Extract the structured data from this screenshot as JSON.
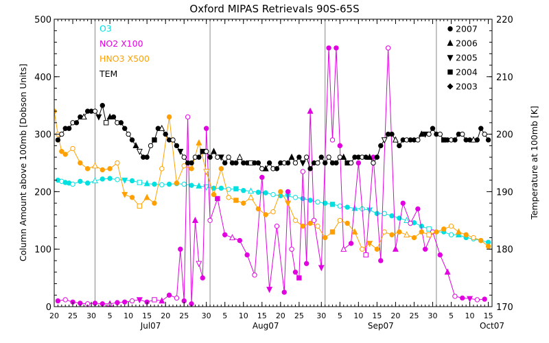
{
  "chart_data": {
    "type": "scatter",
    "title": "Oxford MIPAS Retrievals 90S-65S",
    "ylabel_left": "Column Amount above 100mb [Dobson Units]",
    "ylabel_right": "Temperature at 100mb [K]",
    "ylim_left": [
      0,
      500
    ],
    "ylim_right": [
      170,
      220
    ],
    "yticks_left": [
      "0",
      "100",
      "200",
      "300",
      "400",
      "500"
    ],
    "yticks_right": [
      "170",
      "180",
      "190",
      "200",
      "210",
      "220"
    ],
    "xlim_days": [
      0,
      118
    ],
    "xticks": [
      {
        "day": 0,
        "label": "20"
      },
      {
        "day": 5,
        "label": "25"
      },
      {
        "day": 10,
        "label": "30"
      },
      {
        "day": 15,
        "label": "5"
      },
      {
        "day": 20,
        "label": "10"
      },
      {
        "day": 25,
        "label": "15"
      },
      {
        "day": 30,
        "label": "20"
      },
      {
        "day": 35,
        "label": "25"
      },
      {
        "day": 41,
        "label": "30"
      },
      {
        "day": 46,
        "label": "5"
      },
      {
        "day": 51,
        "label": "10"
      },
      {
        "day": 56,
        "label": "15"
      },
      {
        "day": 61,
        "label": "20"
      },
      {
        "day": 66,
        "label": "25"
      },
      {
        "day": 72,
        "label": "30"
      },
      {
        "day": 77,
        "label": "5"
      },
      {
        "day": 82,
        "label": "10"
      },
      {
        "day": 87,
        "label": "15"
      },
      {
        "day": 92,
        "label": "20"
      },
      {
        "day": 97,
        "label": "25"
      },
      {
        "day": 102,
        "label": "30"
      },
      {
        "day": 107,
        "label": "5"
      },
      {
        "day": 112,
        "label": "10"
      },
      {
        "day": 117,
        "label": "15"
      }
    ],
    "month_boundaries": [
      11,
      42,
      73,
      103
    ],
    "month_labels": [
      {
        "day": 26,
        "label": "Jul07"
      },
      {
        "day": 57,
        "label": "Aug07"
      },
      {
        "day": 88,
        "label": "Sep07"
      },
      {
        "day": 118,
        "label": "Oct07"
      }
    ],
    "legend_left": [
      {
        "label": "O3",
        "color": "#00e0e0"
      },
      {
        "label": "NO2 X100",
        "color": "#e000e0"
      },
      {
        "label": "HNO3 X500",
        "color": "#ffa000"
      },
      {
        "label": "TEM",
        "color": "#000000"
      }
    ],
    "legend_right": [
      {
        "label": "2007",
        "marker": "circle"
      },
      {
        "label": "2006",
        "marker": "triangle-up"
      },
      {
        "label": "2005",
        "marker": "triangle-down"
      },
      {
        "label": "2004",
        "marker": "square"
      },
      {
        "label": "2003",
        "marker": "diamond"
      }
    ],
    "series": [
      {
        "name": "O3",
        "color": "#00e0e0",
        "x": [
          1,
          2,
          3,
          4,
          5,
          7,
          9,
          11,
          13,
          15,
          17,
          19,
          21,
          23,
          25,
          27,
          29,
          31,
          33,
          35,
          37,
          39,
          41,
          43,
          45,
          47,
          49,
          51,
          53,
          55,
          57,
          59,
          61,
          63,
          65,
          67,
          69,
          71,
          73,
          75,
          77,
          79,
          81,
          83,
          85,
          87,
          89,
          91,
          93,
          95,
          97,
          99,
          101,
          103,
          105,
          107,
          109,
          111,
          113,
          115,
          117
        ],
        "y": [
          220,
          218,
          216,
          215,
          213,
          218,
          215,
          219,
          222,
          223,
          221,
          220,
          219,
          216,
          214,
          213,
          212,
          213,
          214,
          213,
          211,
          210,
          208,
          206,
          206,
          204,
          205,
          202,
          201,
          199,
          198,
          195,
          193,
          192,
          190,
          188,
          185,
          182,
          180,
          178,
          175,
          173,
          171,
          170,
          168,
          162,
          162,
          158,
          154,
          150,
          146,
          140,
          135,
          130,
          130,
          125,
          125,
          120,
          118,
          115,
          112
        ]
      },
      {
        "name": "NO2 X100",
        "color": "#e000e0",
        "x": [
          1,
          3,
          5,
          7,
          9,
          11,
          13,
          15,
          17,
          19,
          21,
          23,
          25,
          27,
          29,
          31,
          33,
          34,
          35,
          36,
          37,
          38,
          39,
          40,
          41,
          42,
          44,
          46,
          48,
          50,
          52,
          54,
          56,
          58,
          60,
          62,
          63,
          64,
          65,
          66,
          67,
          68,
          69,
          70,
          72,
          74,
          75,
          76,
          77,
          78,
          80,
          82,
          84,
          86,
          88,
          90,
          92,
          94,
          96,
          98,
          100,
          102,
          104,
          106,
          108,
          110,
          112,
          114,
          116
        ],
        "y": [
          10,
          12,
          8,
          6,
          5,
          6,
          5,
          5,
          7,
          8,
          10,
          12,
          8,
          12,
          10,
          20,
          15,
          100,
          10,
          330,
          5,
          150,
          75,
          50,
          310,
          150,
          188,
          125,
          120,
          115,
          90,
          55,
          225,
          30,
          140,
          25,
          200,
          100,
          60,
          50,
          235,
          75,
          340,
          150,
          68,
          450,
          290,
          450,
          280,
          100,
          110,
          250,
          90,
          260,
          80,
          450,
          100,
          180,
          145,
          170,
          100,
          130,
          90,
          60,
          18,
          15,
          14,
          12,
          13
        ]
      },
      {
        "name": "HNO3 X500",
        "color": "#ffa000",
        "x": [
          0,
          1,
          2,
          3,
          5,
          7,
          9,
          11,
          13,
          15,
          17,
          19,
          21,
          23,
          25,
          27,
          29,
          31,
          33,
          35,
          37,
          39,
          41,
          43,
          45,
          47,
          49,
          51,
          53,
          55,
          57,
          59,
          61,
          63,
          65,
          67,
          69,
          71,
          73,
          75,
          77,
          79,
          81,
          83,
          85,
          87,
          89,
          91,
          93,
          95,
          97,
          99,
          101,
          103,
          105,
          107,
          109,
          111,
          113,
          115,
          117
        ],
        "y": [
          340,
          300,
          270,
          265,
          275,
          250,
          240,
          245,
          238,
          240,
          250,
          195,
          190,
          175,
          190,
          180,
          240,
          330,
          215,
          245,
          240,
          285,
          235,
          195,
          240,
          190,
          185,
          180,
          190,
          170,
          160,
          165,
          200,
          180,
          150,
          140,
          145,
          140,
          120,
          130,
          150,
          145,
          130,
          100,
          110,
          100,
          130,
          125,
          130,
          125,
          120,
          130,
          125,
          130,
          135,
          140,
          130,
          125,
          120,
          115,
          105
        ]
      },
      {
        "name": "TEM",
        "color": "#000000",
        "x": [
          1,
          2,
          3,
          4,
          5,
          6,
          7,
          8,
          9,
          10,
          11,
          12,
          13,
          14,
          15,
          16,
          17,
          18,
          19,
          20,
          21,
          22,
          23,
          24,
          25,
          26,
          27,
          28,
          29,
          30,
          31,
          32,
          33,
          34,
          35,
          36,
          37,
          38,
          39,
          40,
          41,
          42,
          43,
          44,
          45,
          46,
          47,
          48,
          49,
          50,
          51,
          52,
          53,
          54,
          55,
          56,
          57,
          58,
          59,
          60,
          61,
          62,
          63,
          64,
          65,
          66,
          67,
          68,
          69,
          70,
          71,
          72,
          73,
          74,
          75,
          76,
          77,
          78,
          79,
          80,
          81,
          82,
          83,
          84,
          85,
          86,
          87,
          88,
          89,
          90,
          91,
          92,
          93,
          94,
          95,
          96,
          97,
          98,
          99,
          100,
          101,
          102,
          103,
          104,
          105,
          106,
          107,
          108,
          109,
          110,
          111,
          112,
          113,
          114,
          115,
          116,
          117
        ],
        "y": [
          199,
          200,
          201,
          201,
          202,
          202,
          203,
          203,
          204,
          204,
          204,
          203,
          205,
          202,
          203,
          203,
          202,
          202,
          201,
          200,
          199,
          198,
          197,
          196,
          196,
          198,
          199,
          201,
          201,
          200,
          199,
          199,
          198,
          197,
          196,
          195,
          195,
          196,
          196,
          197,
          197,
          196,
          197,
          196,
          196,
          195,
          196,
          195,
          195,
          196,
          195,
          195,
          195,
          195,
          195,
          194,
          194,
          195,
          194,
          194,
          195,
          195,
          195,
          196,
          195,
          196,
          195,
          196,
          194,
          195,
          195,
          196,
          195,
          196,
          195,
          195,
          196,
          196,
          195,
          195,
          196,
          196,
          196,
          196,
          196,
          195,
          196,
          198,
          199,
          200,
          200,
          199,
          198,
          199,
          199,
          199,
          199,
          199,
          200,
          200,
          200,
          201,
          200,
          200,
          199,
          199,
          199,
          199,
          200,
          200,
          199,
          199,
          199,
          199,
          201,
          200,
          199
        ]
      }
    ]
  }
}
